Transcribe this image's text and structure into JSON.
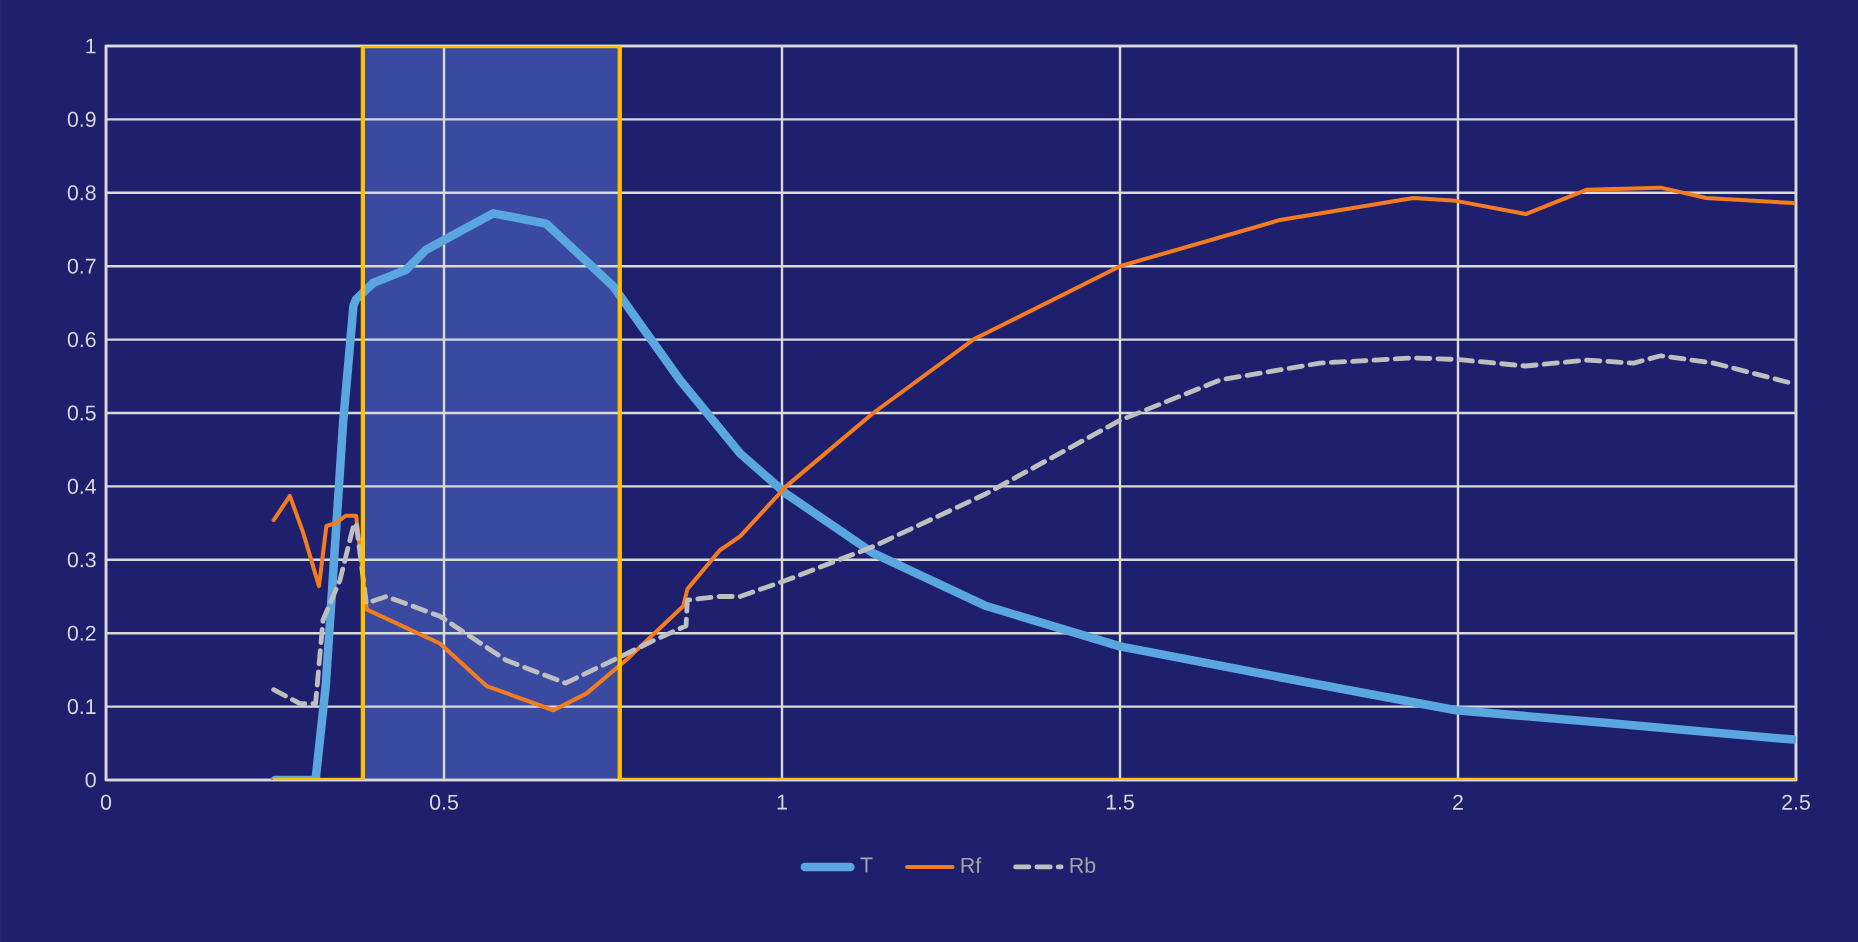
{
  "chart_data": {
    "type": "line",
    "xlim": [
      0,
      2.5
    ],
    "ylim": [
      0,
      1
    ],
    "xticks": [
      0,
      0.5,
      1,
      1.5,
      2,
      2.5
    ],
    "yticks": [
      0,
      0.1,
      0.2,
      0.3,
      0.4,
      0.5,
      0.6,
      0.7,
      0.8,
      0.9,
      1
    ],
    "grid": true,
    "legend": "bottom",
    "bands": [
      {
        "axis": "x",
        "from": 0.38,
        "to": 0.76,
        "color": "#3a4aa0"
      }
    ],
    "series": [
      {
        "name": "T",
        "color": "#5aa7e0",
        "line_style": "solid",
        "x": [
          0.25,
          0.31,
          0.325,
          0.351,
          0.366,
          0.37,
          0.395,
          0.444,
          0.473,
          0.573,
          0.651,
          0.75,
          0.849,
          0.938,
          1.006,
          1.135,
          1.302,
          1.5,
          1.737,
          1.997,
          2.23,
          2.496
        ],
        "values": [
          0,
          0,
          0.128,
          0.49,
          0.646,
          0.655,
          0.677,
          0.695,
          0.722,
          0.772,
          0.758,
          0.673,
          0.545,
          0.445,
          0.39,
          0.309,
          0.237,
          0.182,
          0.14,
          0.095,
          0.077,
          0.055
        ]
      },
      {
        "name": "Rf",
        "color": "#f47c20",
        "line_style": "solid",
        "x": [
          0.248,
          0.272,
          0.292,
          0.315,
          0.326,
          0.34,
          0.355,
          0.37,
          0.386,
          0.494,
          0.563,
          0.662,
          0.711,
          0.769,
          0.854,
          0.86,
          0.908,
          0.938,
          1.006,
          1.135,
          1.283,
          1.5,
          1.737,
          1.934,
          1.997,
          2.1,
          2.19,
          2.3,
          2.367,
          2.496
        ],
        "values": [
          0.354,
          0.387,
          0.336,
          0.264,
          0.346,
          0.35,
          0.36,
          0.36,
          0.232,
          0.186,
          0.128,
          0.095,
          0.118,
          0.163,
          0.237,
          0.26,
          0.313,
          0.332,
          0.4,
          0.5,
          0.6,
          0.7,
          0.763,
          0.793,
          0.789,
          0.771,
          0.804,
          0.807,
          0.793,
          0.786
        ]
      },
      {
        "name": "Rb",
        "color": "#bfbfbf",
        "line_style": "dashed",
        "x": [
          0.248,
          0.287,
          0.31,
          0.321,
          0.346,
          0.366,
          0.37,
          0.385,
          0.415,
          0.494,
          0.592,
          0.68,
          0.75,
          0.81,
          0.858,
          0.86,
          0.908,
          0.938,
          1.006,
          1.135,
          1.302,
          1.5,
          1.648,
          1.796,
          1.934,
          1.997,
          2.1,
          2.19,
          2.26,
          2.3,
          2.378,
          2.496
        ],
        "values": [
          0.123,
          0.104,
          0.104,
          0.218,
          0.272,
          0.346,
          0.35,
          0.241,
          0.25,
          0.223,
          0.163,
          0.132,
          0.163,
          0.19,
          0.21,
          0.245,
          0.25,
          0.25,
          0.272,
          0.318,
          0.39,
          0.49,
          0.545,
          0.568,
          0.575,
          0.573,
          0.564,
          0.572,
          0.568,
          0.578,
          0.568,
          0.54
        ]
      },
      {
        "color": "#ffc000",
        "line_style": "solid",
        "x": [
          0.25,
          0.38,
          0.38,
          0.76,
          0.76,
          2.5
        ],
        "values": [
          0,
          0,
          1,
          1,
          0,
          0
        ]
      }
    ]
  }
}
